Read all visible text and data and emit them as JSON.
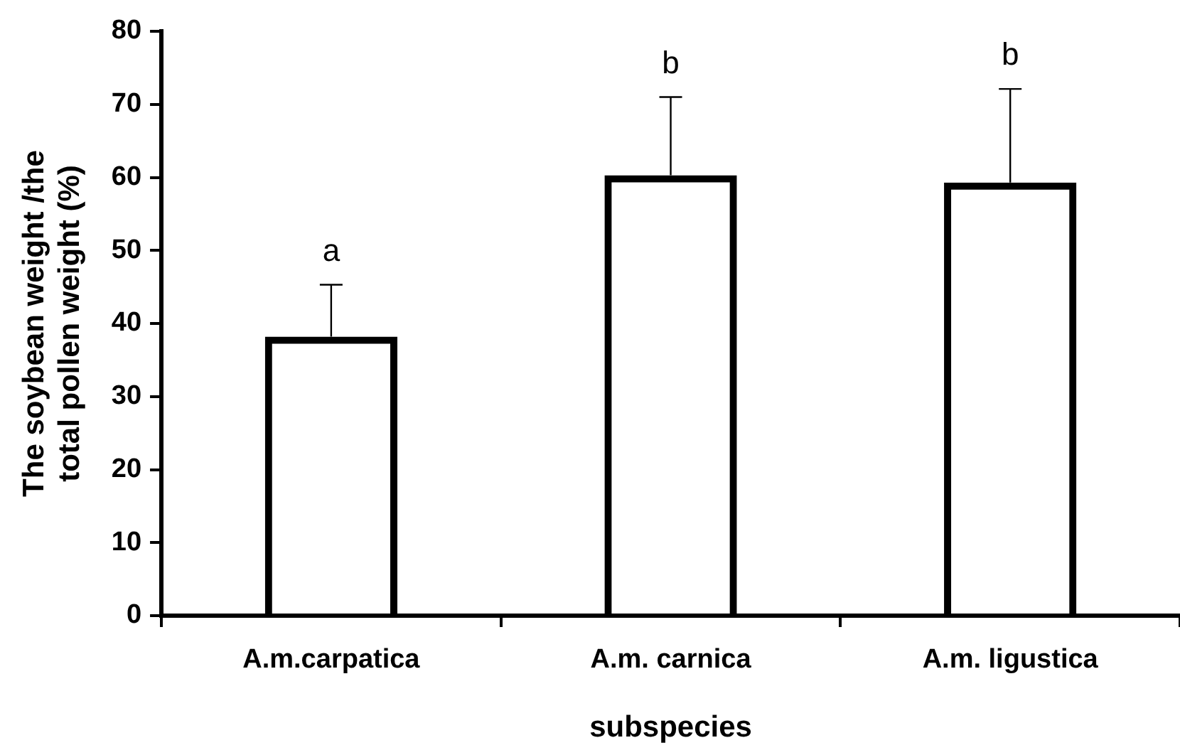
{
  "chart_data": {
    "type": "bar",
    "ylabel": "The soybean weight /the total pollen weight (%)",
    "xlabel": "subspecies",
    "categories": [
      "A.m.carpatica",
      "A.m. carnica",
      "A.m. ligustica"
    ],
    "series": [
      {
        "color": "#000000",
        "values": [
          38.2,
          60.3,
          59.3
        ],
        "errors": [
          [
            38.2,
            45.3
          ],
          [
            60.3,
            71.0
          ],
          [
            59.3,
            72.1
          ]
        ]
      }
    ],
    "ylim": [
      0,
      80
    ],
    "yticks": [
      0,
      10,
      20,
      30,
      40,
      50,
      60,
      70,
      80
    ],
    "grid": false,
    "legend": false,
    "annotations": [
      {
        "text": "a",
        "x": "A.m.carpatica",
        "y": 45.3
      },
      {
        "text": "b",
        "x": "A.m. carnica",
        "y": 71.0
      },
      {
        "text": "b",
        "x": "A.m. ligustica",
        "y": 72.1
      }
    ]
  }
}
